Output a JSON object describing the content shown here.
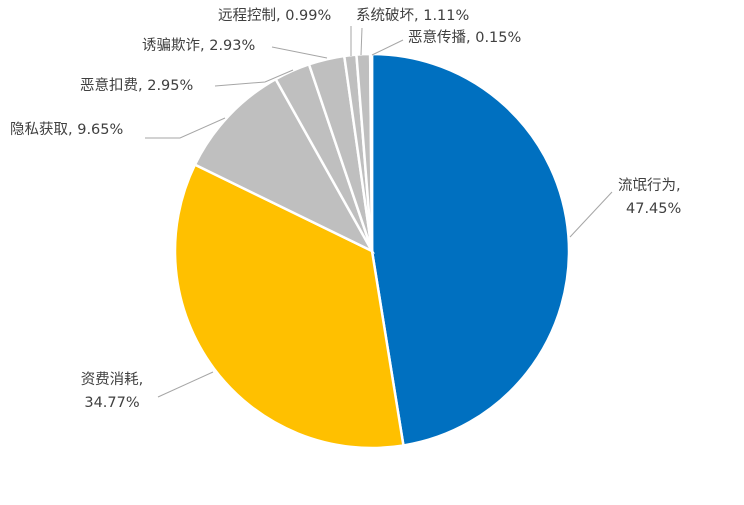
{
  "chart_data": {
    "type": "pie",
    "start": "12 o'clock",
    "direction": "clockwise",
    "slices": [
      {
        "label": "流氓行为",
        "value": 47.45,
        "display": "47.45%",
        "color": "#0070c0"
      },
      {
        "label": "资费消耗",
        "value": 34.77,
        "display": "34.77%",
        "color": "#ffc000"
      },
      {
        "label": "隐私获取",
        "value": 9.65,
        "display": "9.65%",
        "color": "#bfbfbf"
      },
      {
        "label": "恶意扣费",
        "value": 2.95,
        "display": "2.95%",
        "color": "#bfbfbf"
      },
      {
        "label": "诱骗欺诈",
        "value": 2.93,
        "display": "2.93%",
        "color": "#bfbfbf"
      },
      {
        "label": "远程控制",
        "value": 0.99,
        "display": "0.99%",
        "color": "#bfbfbf"
      },
      {
        "label": "系统破坏",
        "value": 1.11,
        "display": "1.11%",
        "color": "#bfbfbf"
      },
      {
        "label": "恶意传播",
        "value": 0.15,
        "display": "0.15%",
        "color": "#002060"
      }
    ]
  }
}
